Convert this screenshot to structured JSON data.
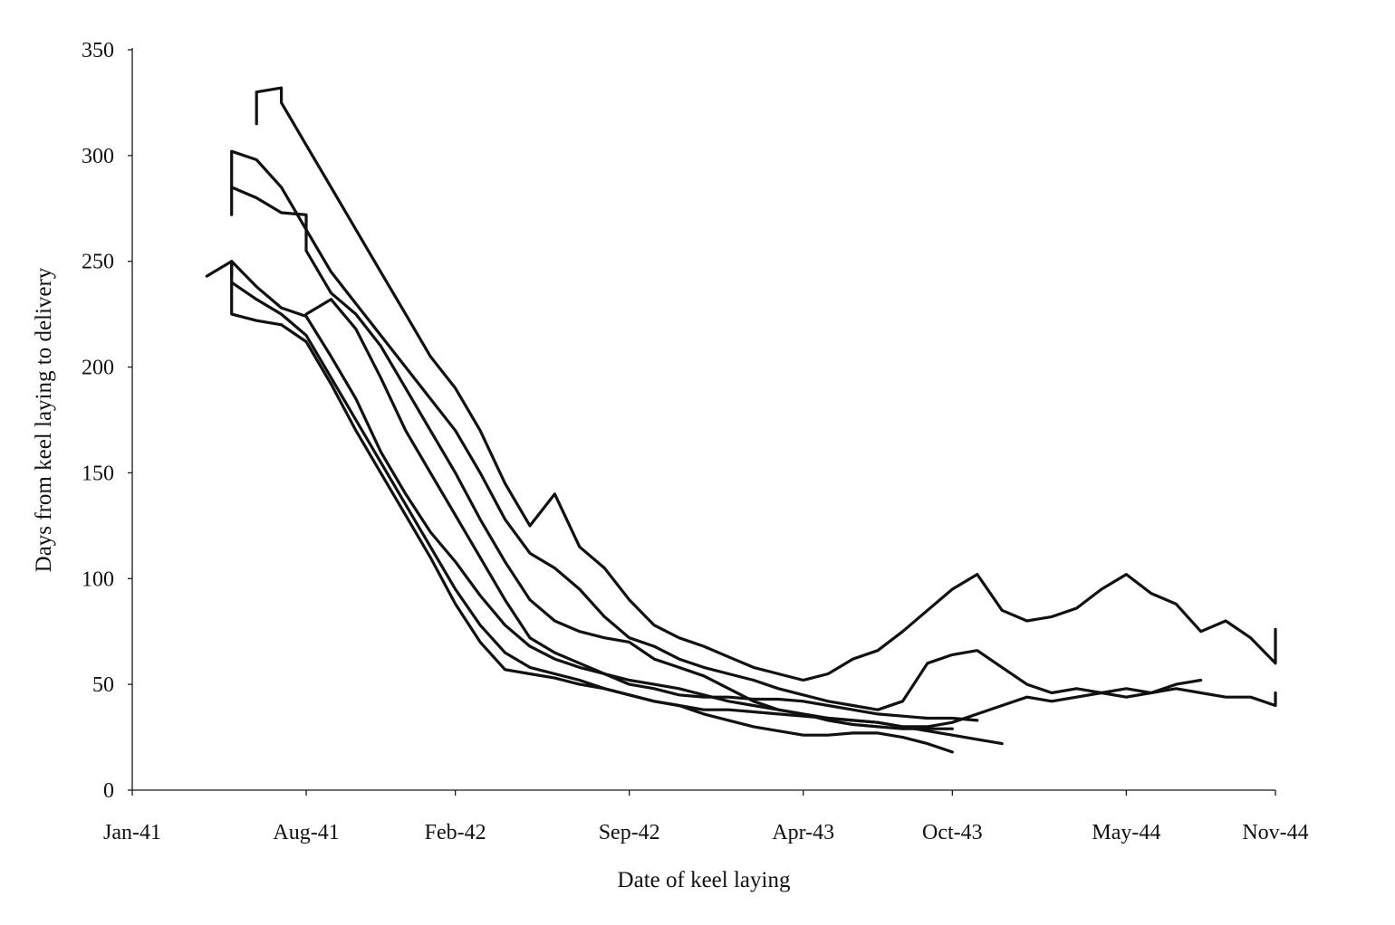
{
  "chart_data": {
    "type": "line",
    "title": "",
    "xlabel": "Date of keel laying",
    "ylabel": "Days from keel laying to delivery",
    "x_ticks": [
      "Jan-41",
      "Aug-41",
      "Feb-42",
      "Sep-42",
      "Apr-43",
      "Oct-43",
      "May-44",
      "Nov-44"
    ],
    "y_ticks": [
      "0",
      "50",
      "100",
      "150",
      "200",
      "250",
      "300",
      "350"
    ],
    "xlim": [
      "Jan-41",
      "Nov-44"
    ],
    "ylim": [
      0,
      350
    ],
    "grid": false,
    "legend": "none",
    "line_color": "#111111",
    "series": [
      {
        "x": [
          "Jun-41",
          "Jun-41",
          "Jul-41",
          "Jul-41",
          "Aug-41",
          "Sep-41",
          "Oct-41",
          "Nov-41",
          "Dec-41",
          "Jan-42",
          "Feb-42",
          "Mar-42",
          "Apr-42",
          "May-42",
          "Jun-42",
          "Jul-42",
          "Aug-42",
          "Sep-42",
          "Oct-42",
          "Nov-42",
          "Dec-42",
          "Jan-43",
          "Feb-43",
          "Mar-43",
          "Apr-43",
          "May-43",
          "Jun-43",
          "Jul-43",
          "Aug-43",
          "Sep-43",
          "Oct-43",
          "Nov-43",
          "Dec-43",
          "Jan-44",
          "Feb-44",
          "Mar-44",
          "Apr-44",
          "May-44",
          "Jun-44",
          "Jul-44",
          "Aug-44",
          "Sep-44",
          "Oct-44",
          "Nov-44",
          "Nov-44"
        ],
        "y": [
          315,
          330,
          332,
          325,
          305,
          285,
          265,
          245,
          225,
          205,
          190,
          170,
          145,
          125,
          140,
          115,
          105,
          90,
          78,
          72,
          68,
          63,
          58,
          55,
          52,
          55,
          62,
          66,
          75,
          85,
          95,
          102,
          85,
          80,
          82,
          86,
          95,
          102,
          93,
          88,
          75,
          80,
          72,
          60,
          76
        ]
      },
      {
        "x": [
          "May-41",
          "May-41",
          "Jun-41",
          "Jul-41",
          "Aug-41",
          "Sep-41",
          "Oct-41",
          "Nov-41",
          "Dec-41",
          "Jan-42",
          "Feb-42",
          "Mar-42",
          "Apr-42",
          "May-42",
          "Jun-42",
          "Jul-42",
          "Aug-42",
          "Sep-42",
          "Oct-42",
          "Nov-42",
          "Dec-42",
          "Jan-43",
          "Feb-43",
          "Mar-43",
          "Apr-43",
          "May-43",
          "Jun-43",
          "Jul-43",
          "Aug-43",
          "Sep-43",
          "Oct-43",
          "Nov-43",
          "Dec-43",
          "Jan-44",
          "Feb-44",
          "Mar-44",
          "Apr-44",
          "May-44",
          "Jun-44",
          "Jul-44",
          "Aug-44",
          "Sep-44",
          "Oct-44",
          "Nov-44",
          "Nov-44"
        ],
        "y": [
          272,
          302,
          298,
          285,
          265,
          245,
          230,
          215,
          200,
          185,
          170,
          150,
          128,
          112,
          105,
          95,
          82,
          72,
          68,
          62,
          58,
          55,
          52,
          48,
          45,
          42,
          40,
          38,
          42,
          60,
          64,
          66,
          58,
          50,
          46,
          48,
          46,
          44,
          46,
          48,
          46,
          44,
          44,
          40,
          46
        ]
      },
      {
        "x": [
          "May-41",
          "Jun-41",
          "Jul-41",
          "Aug-41",
          "Aug-41",
          "Sep-41",
          "Oct-41",
          "Nov-41",
          "Dec-41",
          "Jan-42",
          "Feb-42",
          "Mar-42",
          "Apr-42",
          "May-42",
          "Jun-42",
          "Jul-42",
          "Aug-42",
          "Sep-42",
          "Oct-42",
          "Nov-42",
          "Dec-42",
          "Jan-43",
          "Feb-43",
          "Mar-43",
          "Apr-43",
          "May-43",
          "Jun-43",
          "Jul-43",
          "Aug-43",
          "Sep-43",
          "Oct-43"
        ],
        "y": [
          285,
          280,
          273,
          272,
          255,
          235,
          225,
          210,
          190,
          170,
          150,
          128,
          108,
          90,
          80,
          75,
          72,
          70,
          62,
          58,
          54,
          48,
          42,
          38,
          36,
          33,
          31,
          30,
          29,
          29,
          29
        ]
      },
      {
        "x": [
          "May-41",
          "May-41",
          "Jun-41",
          "Jul-41",
          "Aug-41",
          "Sep-41",
          "Oct-41",
          "Nov-41",
          "Dec-41",
          "Jan-42",
          "Feb-42",
          "Mar-42",
          "Apr-42",
          "May-42",
          "Jun-42",
          "Jul-42",
          "Aug-42",
          "Sep-42",
          "Oct-42",
          "Nov-42",
          "Dec-42",
          "Jan-43",
          "Feb-43",
          "Mar-43",
          "Apr-43",
          "May-43",
          "Jun-43",
          "Jul-43",
          "Aug-43",
          "Sep-43",
          "Oct-43",
          "Nov-43",
          "Dec-43"
        ],
        "y": [
          243,
          250,
          238,
          228,
          224,
          205,
          185,
          160,
          140,
          122,
          108,
          92,
          78,
          68,
          62,
          58,
          55,
          52,
          50,
          48,
          45,
          42,
          40,
          38,
          36,
          34,
          33,
          32,
          30,
          28,
          26,
          24,
          22
        ]
      },
      {
        "x": [
          "May-41",
          "Jun-41",
          "Jul-41",
          "Aug-41",
          "Sep-41",
          "Oct-41",
          "Nov-41",
          "Dec-41",
          "Jan-42",
          "Feb-42",
          "Mar-42",
          "Apr-42",
          "May-42",
          "Jun-42",
          "Jul-42",
          "Aug-42",
          "Sep-42",
          "Oct-42",
          "Nov-42",
          "Dec-42",
          "Jan-43",
          "Feb-43",
          "Mar-43",
          "Apr-43",
          "May-43",
          "Jun-43",
          "Jul-43",
          "Aug-43",
          "Sep-43",
          "Oct-43",
          "Nov-43",
          "Dec-43",
          "Jan-44",
          "Feb-44",
          "Mar-44",
          "Apr-44",
          "May-44",
          "Jun-44",
          "Jul-44",
          "Aug-44"
        ],
        "y": [
          240,
          232,
          225,
          215,
          195,
          175,
          155,
          135,
          115,
          95,
          78,
          65,
          58,
          55,
          52,
          48,
          45,
          42,
          40,
          38,
          38,
          37,
          36,
          35,
          34,
          33,
          32,
          30,
          30,
          32,
          36,
          40,
          44,
          42,
          44,
          46,
          48,
          46,
          50,
          52
        ]
      },
      {
        "x": [
          "Apr-41",
          "May-41",
          "May-41",
          "Jun-41",
          "Jul-41",
          "Aug-41",
          "Sep-41",
          "Oct-41",
          "Nov-41",
          "Dec-41",
          "Jan-42",
          "Feb-42",
          "Mar-42",
          "Apr-42",
          "May-42",
          "Jun-42",
          "Jul-42",
          "Aug-42",
          "Sep-42",
          "Oct-42",
          "Nov-42",
          "Dec-42",
          "Jan-43",
          "Feb-43",
          "Mar-43",
          "Apr-43",
          "May-43",
          "Jun-43",
          "Jul-43",
          "Aug-43",
          "Sep-43",
          "Oct-43"
        ],
        "y": [
          243,
          250,
          225,
          222,
          220,
          212,
          192,
          170,
          150,
          130,
          110,
          88,
          70,
          57,
          55,
          53,
          50,
          48,
          45,
          42,
          40,
          36,
          33,
          30,
          28,
          26,
          26,
          27,
          27,
          25,
          22,
          18
        ]
      },
      {
        "x": [
          "Aug-41",
          "Sep-41",
          "Oct-41",
          "Nov-41",
          "Dec-41",
          "Jan-42",
          "Feb-42",
          "Mar-42",
          "Apr-42",
          "May-42",
          "Jun-42",
          "Jul-42",
          "Aug-42",
          "Sep-42",
          "Oct-42",
          "Nov-42",
          "Dec-42",
          "Jan-43",
          "Feb-43",
          "Mar-43",
          "Apr-43",
          "May-43",
          "Jun-43",
          "Jul-43",
          "Aug-43",
          "Sep-43",
          "Oct-43",
          "Nov-43"
        ],
        "y": [
          225,
          232,
          218,
          195,
          170,
          150,
          130,
          110,
          90,
          72,
          65,
          60,
          55,
          50,
          48,
          45,
          44,
          44,
          43,
          43,
          42,
          40,
          38,
          36,
          35,
          34,
          34,
          33
        ]
      }
    ]
  }
}
